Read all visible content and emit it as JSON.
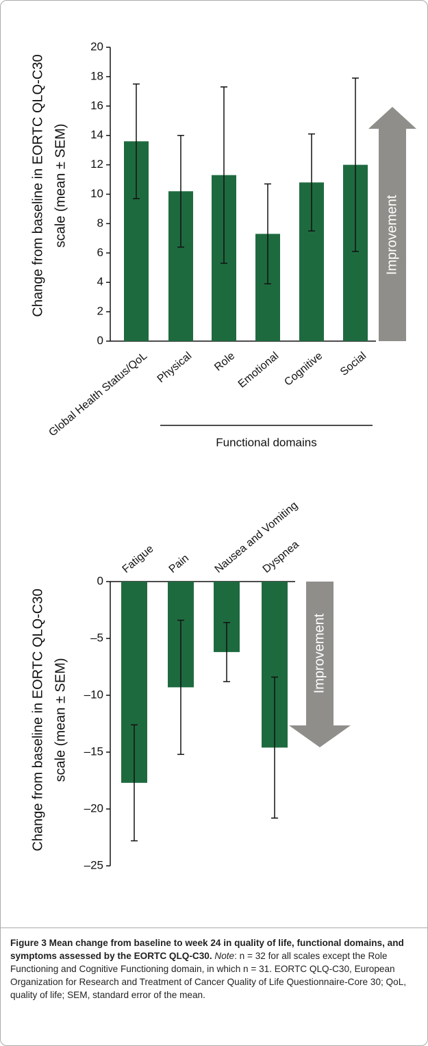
{
  "chart_data": [
    {
      "type": "bar",
      "ylabel": [
        "Change from baseline in EORTC QLQ-C30",
        "scale (mean ± SEM)"
      ],
      "categories": [
        "Global Health Status/QoL",
        "Physical",
        "Role",
        "Emotional",
        "Cognitive",
        "Social"
      ],
      "values": [
        13.6,
        10.2,
        11.3,
        7.3,
        10.8,
        12.0
      ],
      "errors": [
        3.9,
        3.8,
        6.0,
        3.4,
        3.3,
        5.9
      ],
      "color": "#1e6a3f",
      "ylim": [
        0,
        20
      ],
      "yticks": [
        0,
        2,
        4,
        6,
        8,
        10,
        12,
        14,
        16,
        18,
        20
      ],
      "annotation": "Improvement",
      "group_label": "Functional domains"
    },
    {
      "type": "bar",
      "ylabel": [
        "Change from baseline in EORTC QLQ-C30",
        "scale (mean ± SEM)"
      ],
      "categories": [
        "Fatigue",
        "Pain",
        "Nausea and Vomiting",
        "Dyspnea"
      ],
      "values": [
        -17.7,
        -9.3,
        -6.2,
        -14.6
      ],
      "errors": [
        5.1,
        5.9,
        2.6,
        6.2
      ],
      "color": "#1e6a3f",
      "ylim": [
        -25,
        0
      ],
      "yticks": [
        0,
        {
          "value": -5,
          "label": "–5"
        },
        {
          "value": -10,
          "label": "–10"
        },
        {
          "value": -15,
          "label": "–15"
        },
        {
          "value": -20,
          "label": "–20"
        },
        {
          "value": -25,
          "label": "–25"
        }
      ],
      "annotation": "Improvement"
    }
  ],
  "caption": {
    "title": "Figure 3 Mean change from baseline to week 24 in quality of life, functional domains, and symptoms assessed by the EORTC QLQ-C30.",
    "note_label": "Note",
    "note": ": n = 32 for all scales except the Role Functioning and Cognitive Functioning domain, in which n = 31. EORTC QLQ-C30, European Organization for Research and Treatment of Cancer Quality of Life Questionnaire-Core 30; QoL, quality of life; SEM, standard error of the mean."
  }
}
